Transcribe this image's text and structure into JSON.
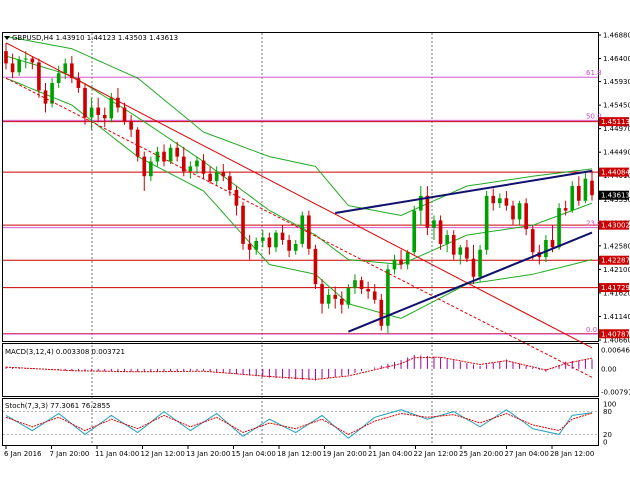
{
  "colors": {
    "background": "#ffffff",
    "bull_candle": "#00a000",
    "bear_candle": "#cc0000",
    "bollinger": "#22aa22",
    "channel_red": "#e00000",
    "trend_blue": "#10106e",
    "fib_line": "#cc44cc",
    "level_line": "#cc0000",
    "macd_hist": "#a000a0",
    "macd_signal": "#e00000",
    "stoch_main": "#20a0c0",
    "stoch_signal": "#e00000",
    "price_label_bg": "#cc0000",
    "current_label_bg": "#000000"
  },
  "main": {
    "header": "GBPUSD,H4  1.43910 1.44123 1.43503 1.43613",
    "header_icon": "triangle-down-icon"
  },
  "chart_data": [
    {
      "type": "candlestick",
      "symbol": "GBPUSD",
      "timeframe": "H4",
      "ohlc_header": {
        "open": 1.4391,
        "high": 1.44123,
        "low": 1.43503,
        "close": 1.43613
      },
      "ylim": [
        1.4066,
        1.4688
      ],
      "y_ticks": [
        "1.46880",
        "1.46400",
        "1.45930",
        "1.45450",
        "1.44970",
        "1.44490",
        "1.44010",
        "1.43530",
        "1.43050",
        "1.42580",
        "1.42100",
        "1.41620",
        "1.41140",
        "1.40660"
      ],
      "price_labels": [
        {
          "value": 1.45113,
          "text": "1.45113"
        },
        {
          "value": 1.44084,
          "text": "1.44084"
        },
        {
          "value": 1.43613,
          "text": "1.43613",
          "current": true
        },
        {
          "value": 1.43002,
          "text": "1.43002"
        },
        {
          "value": 1.42287,
          "text": "1.42287"
        },
        {
          "value": 1.41729,
          "text": "1.41729"
        },
        {
          "value": 1.40787,
          "text": "1.40787"
        }
      ],
      "fibonacci": [
        {
          "level": "61.8",
          "value": 1.4602
        },
        {
          "level": "50.0",
          "value": 1.4514
        },
        {
          "level": "23.6",
          "value": 1.4295
        },
        {
          "level": "0.0",
          "value": 1.4078
        }
      ],
      "horizontal_levels": [
        1.45113,
        1.44084,
        1.43002,
        1.42287,
        1.41729,
        1.40787
      ],
      "x_labels": [
        "6 Jan 2016",
        "7 Jan 20:00",
        "11 Jan 04:00",
        "12 Jan 12:00",
        "13 Jan 20:00",
        "15 Jan 04:00",
        "18 Jan 12:00",
        "19 Jan 20:00",
        "21 Jan 04:00",
        "22 Jan 12:00",
        "25 Jan 20:00",
        "27 Jan 04:00",
        "28 Jan 12:00"
      ],
      "candles": [
        [
          1.4655,
          1.4672,
          1.4618,
          1.463
        ],
        [
          1.463,
          1.465,
          1.46,
          1.4612
        ],
        [
          1.4612,
          1.4645,
          1.4605,
          1.4638
        ],
        [
          1.4638,
          1.4655,
          1.462,
          1.464
        ],
        [
          1.464,
          1.4645,
          1.4618,
          1.4632
        ],
        [
          1.4632,
          1.464,
          1.456,
          1.4575
        ],
        [
          1.4575,
          1.459,
          1.453,
          1.4548
        ],
        [
          1.4548,
          1.46,
          1.454,
          1.459
        ],
        [
          1.459,
          1.4625,
          1.458,
          1.461
        ],
        [
          1.461,
          1.464,
          1.4598,
          1.463
        ],
        [
          1.463,
          1.4645,
          1.459,
          1.46
        ],
        [
          1.46,
          1.4612,
          1.457,
          1.458
        ],
        [
          1.458,
          1.459,
          1.4505,
          1.452
        ],
        [
          1.452,
          1.456,
          1.4495,
          1.454
        ],
        [
          1.454,
          1.456,
          1.451,
          1.4525
        ],
        [
          1.4525,
          1.454,
          1.45,
          1.4518
        ],
        [
          1.4518,
          1.457,
          1.451,
          1.456
        ],
        [
          1.456,
          1.458,
          1.453,
          1.454
        ],
        [
          1.454,
          1.455,
          1.4505,
          1.4512
        ],
        [
          1.4512,
          1.4525,
          1.448,
          1.4495
        ],
        [
          1.4495,
          1.45,
          1.443,
          1.444
        ],
        [
          1.444,
          1.445,
          1.437,
          1.44
        ],
        [
          1.44,
          1.444,
          1.439,
          1.443
        ],
        [
          1.443,
          1.446,
          1.442,
          1.445
        ],
        [
          1.445,
          1.4465,
          1.442,
          1.443
        ],
        [
          1.443,
          1.4465,
          1.4425,
          1.4458
        ],
        [
          1.4458,
          1.447,
          1.443,
          1.444
        ],
        [
          1.444,
          1.446,
          1.44,
          1.441
        ],
        [
          1.441,
          1.443,
          1.4395,
          1.442
        ],
        [
          1.442,
          1.444,
          1.4405,
          1.4432
        ],
        [
          1.4432,
          1.4445,
          1.4395,
          1.4405
        ],
        [
          1.4405,
          1.442,
          1.4385,
          1.439
        ],
        [
          1.439,
          1.442,
          1.438,
          1.4408
        ],
        [
          1.4408,
          1.4425,
          1.439,
          1.44
        ],
        [
          1.44,
          1.441,
          1.436,
          1.4372
        ],
        [
          1.4372,
          1.438,
          1.432,
          1.434
        ],
        [
          1.434,
          1.4348,
          1.425,
          1.4262
        ],
        [
          1.4262,
          1.428,
          1.423,
          1.425
        ],
        [
          1.425,
          1.4275,
          1.424,
          1.4268
        ],
        [
          1.4268,
          1.429,
          1.4255,
          1.4275
        ],
        [
          1.4275,
          1.4285,
          1.424,
          1.4255
        ],
        [
          1.4255,
          1.429,
          1.4245,
          1.4285
        ],
        [
          1.4285,
          1.43,
          1.426,
          1.427
        ],
        [
          1.427,
          1.428,
          1.4235,
          1.4248
        ],
        [
          1.4248,
          1.427,
          1.424,
          1.4262
        ],
        [
          1.4262,
          1.4328,
          1.4255,
          1.432
        ],
        [
          1.432,
          1.433,
          1.424,
          1.4252
        ],
        [
          1.4252,
          1.426,
          1.417,
          1.418
        ],
        [
          1.418,
          1.419,
          1.412,
          1.414
        ],
        [
          1.414,
          1.417,
          1.413,
          1.4158
        ],
        [
          1.4158,
          1.4175,
          1.413,
          1.415
        ],
        [
          1.415,
          1.4165,
          1.412,
          1.4138
        ],
        [
          1.4138,
          1.418,
          1.413,
          1.4172
        ],
        [
          1.4172,
          1.42,
          1.416,
          1.4188
        ],
        [
          1.4188,
          1.4195,
          1.416,
          1.417
        ],
        [
          1.417,
          1.4185,
          1.415,
          1.4165
        ],
        [
          1.4165,
          1.418,
          1.414,
          1.4148
        ],
        [
          1.4148,
          1.416,
          1.4085,
          1.4095
        ],
        [
          1.4095,
          1.422,
          1.408,
          1.421
        ],
        [
          1.421,
          1.424,
          1.42,
          1.423
        ],
        [
          1.423,
          1.425,
          1.421,
          1.422
        ],
        [
          1.422,
          1.425,
          1.421,
          1.4245
        ],
        [
          1.4245,
          1.434,
          1.424,
          1.433
        ],
        [
          1.433,
          1.438,
          1.43,
          1.436
        ],
        [
          1.436,
          1.438,
          1.428,
          1.4295
        ],
        [
          1.4295,
          1.432,
          1.427,
          1.431
        ],
        [
          1.431,
          1.432,
          1.425,
          1.4262
        ],
        [
          1.4262,
          1.429,
          1.4245,
          1.428
        ],
        [
          1.428,
          1.429,
          1.423,
          1.424
        ],
        [
          1.424,
          1.426,
          1.422,
          1.4255
        ],
        [
          1.4255,
          1.427,
          1.4225,
          1.4232
        ],
        [
          1.4232,
          1.426,
          1.418,
          1.4195
        ],
        [
          1.4195,
          1.426,
          1.4185,
          1.425
        ],
        [
          1.425,
          1.437,
          1.424,
          1.436
        ],
        [
          1.436,
          1.4375,
          1.433,
          1.4345
        ],
        [
          1.4345,
          1.4365,
          1.4335,
          1.4355
        ],
        [
          1.4355,
          1.437,
          1.433,
          1.434
        ],
        [
          1.434,
          1.435,
          1.43,
          1.4312
        ],
        [
          1.4312,
          1.435,
          1.43,
          1.4345
        ],
        [
          1.4345,
          1.4355,
          1.428,
          1.4292
        ],
        [
          1.4292,
          1.43,
          1.423,
          1.4245
        ],
        [
          1.4245,
          1.426,
          1.422,
          1.4235
        ],
        [
          1.4235,
          1.428,
          1.4225,
          1.427
        ],
        [
          1.427,
          1.43,
          1.4245,
          1.4255
        ],
        [
          1.4255,
          1.4345,
          1.425,
          1.4335
        ],
        [
          1.4335,
          1.435,
          1.432,
          1.433
        ],
        [
          1.433,
          1.439,
          1.4325,
          1.438
        ],
        [
          1.438,
          1.44,
          1.434,
          1.435
        ],
        [
          1.435,
          1.441,
          1.4345,
          1.4395
        ],
        [
          1.4391,
          1.44123,
          1.43503,
          1.43613
        ]
      ],
      "bollinger_upper_anchors": [
        [
          0,
          1.4685
        ],
        [
          10,
          1.466
        ],
        [
          20,
          1.46
        ],
        [
          30,
          1.449
        ],
        [
          40,
          1.444
        ],
        [
          47,
          1.442
        ],
        [
          52,
          1.434
        ],
        [
          60,
          1.432
        ],
        [
          70,
          1.438
        ],
        [
          80,
          1.44
        ],
        [
          89,
          1.4415
        ]
      ],
      "bollinger_mid_anchors": [
        [
          0,
          1.4645
        ],
        [
          10,
          1.4605
        ],
        [
          20,
          1.452
        ],
        [
          30,
          1.443
        ],
        [
          40,
          1.433
        ],
        [
          47,
          1.428
        ],
        [
          52,
          1.423
        ],
        [
          60,
          1.422
        ],
        [
          70,
          1.428
        ],
        [
          80,
          1.43
        ],
        [
          89,
          1.4345
        ]
      ],
      "bollinger_lower_anchors": [
        [
          0,
          1.46
        ],
        [
          10,
          1.4545
        ],
        [
          20,
          1.444
        ],
        [
          30,
          1.437
        ],
        [
          40,
          1.422
        ],
        [
          47,
          1.42
        ],
        [
          52,
          1.414
        ],
        [
          60,
          1.411
        ],
        [
          70,
          1.418
        ],
        [
          80,
          1.42
        ],
        [
          89,
          1.423
        ]
      ],
      "red_channel": [
        [
          [
            0,
            1.4672
          ],
          [
            89,
            1.405
          ]
        ],
        [
          [
            0,
            1.46
          ],
          [
            89,
            1.399
          ]
        ]
      ],
      "blue_trendlines": [
        [
          [
            50,
            1.4325
          ],
          [
            89,
            1.4411
          ]
        ],
        [
          [
            52,
            1.4083
          ],
          [
            89,
            1.4285
          ]
        ]
      ]
    },
    {
      "type": "bar",
      "indicator": "MACD(3,12,4)",
      "header": "MACD(3,12,4) 0.003308 0.003721",
      "ylim": [
        -0.00791,
        0.00646
      ],
      "y_ticks": [
        "0.00646",
        "0.00",
        "-0.00791"
      ],
      "histogram_anchors": [
        [
          0,
          0.0008
        ],
        [
          10,
          -0.0008
        ],
        [
          20,
          -0.001
        ],
        [
          30,
          -0.0006
        ],
        [
          40,
          -0.003
        ],
        [
          47,
          -0.004
        ],
        [
          52,
          -0.002
        ],
        [
          60,
          0.003
        ],
        [
          62,
          0.0048
        ],
        [
          66,
          0.004
        ],
        [
          72,
          0.001
        ],
        [
          76,
          0.0032
        ],
        [
          82,
          -0.001
        ],
        [
          85,
          0.0025
        ],
        [
          89,
          0.0033
        ]
      ],
      "signal_anchors": [
        [
          0,
          0.0006
        ],
        [
          10,
          -0.0006
        ],
        [
          20,
          -0.001
        ],
        [
          30,
          -0.0008
        ],
        [
          40,
          -0.0026
        ],
        [
          47,
          -0.0036
        ],
        [
          52,
          -0.0024
        ],
        [
          60,
          0.0018
        ],
        [
          62,
          0.0038
        ],
        [
          66,
          0.004
        ],
        [
          72,
          0.0015
        ],
        [
          76,
          0.0028
        ],
        [
          82,
          -0.0004
        ],
        [
          85,
          0.0018
        ],
        [
          89,
          0.0037
        ]
      ]
    },
    {
      "type": "line",
      "indicator": "Stoch(7,3,3)",
      "header": "Stoch(7,3,3) 77.3061 76.2855",
      "ylim": [
        0,
        100
      ],
      "y_ticks": [
        "100",
        "80",
        "20",
        "0"
      ],
      "main_anchors": [
        [
          0,
          70
        ],
        [
          4,
          30
        ],
        [
          8,
          75
        ],
        [
          12,
          20
        ],
        [
          16,
          70
        ],
        [
          20,
          25
        ],
        [
          24,
          80
        ],
        [
          28,
          30
        ],
        [
          32,
          75
        ],
        [
          36,
          15
        ],
        [
          40,
          60
        ],
        [
          44,
          25
        ],
        [
          48,
          70
        ],
        [
          52,
          10
        ],
        [
          56,
          65
        ],
        [
          60,
          85
        ],
        [
          64,
          60
        ],
        [
          68,
          80
        ],
        [
          72,
          40
        ],
        [
          76,
          85
        ],
        [
          80,
          35
        ],
        [
          84,
          20
        ],
        [
          86,
          70
        ],
        [
          89,
          77
        ]
      ],
      "signal_anchors": [
        [
          0,
          65
        ],
        [
          4,
          40
        ],
        [
          8,
          65
        ],
        [
          12,
          30
        ],
        [
          16,
          60
        ],
        [
          20,
          35
        ],
        [
          24,
          70
        ],
        [
          28,
          40
        ],
        [
          32,
          65
        ],
        [
          36,
          25
        ],
        [
          40,
          50
        ],
        [
          44,
          35
        ],
        [
          48,
          60
        ],
        [
          52,
          20
        ],
        [
          56,
          55
        ],
        [
          60,
          75
        ],
        [
          64,
          65
        ],
        [
          68,
          72
        ],
        [
          72,
          50
        ],
        [
          76,
          75
        ],
        [
          80,
          45
        ],
        [
          84,
          30
        ],
        [
          86,
          60
        ],
        [
          89,
          76
        ]
      ]
    }
  ]
}
